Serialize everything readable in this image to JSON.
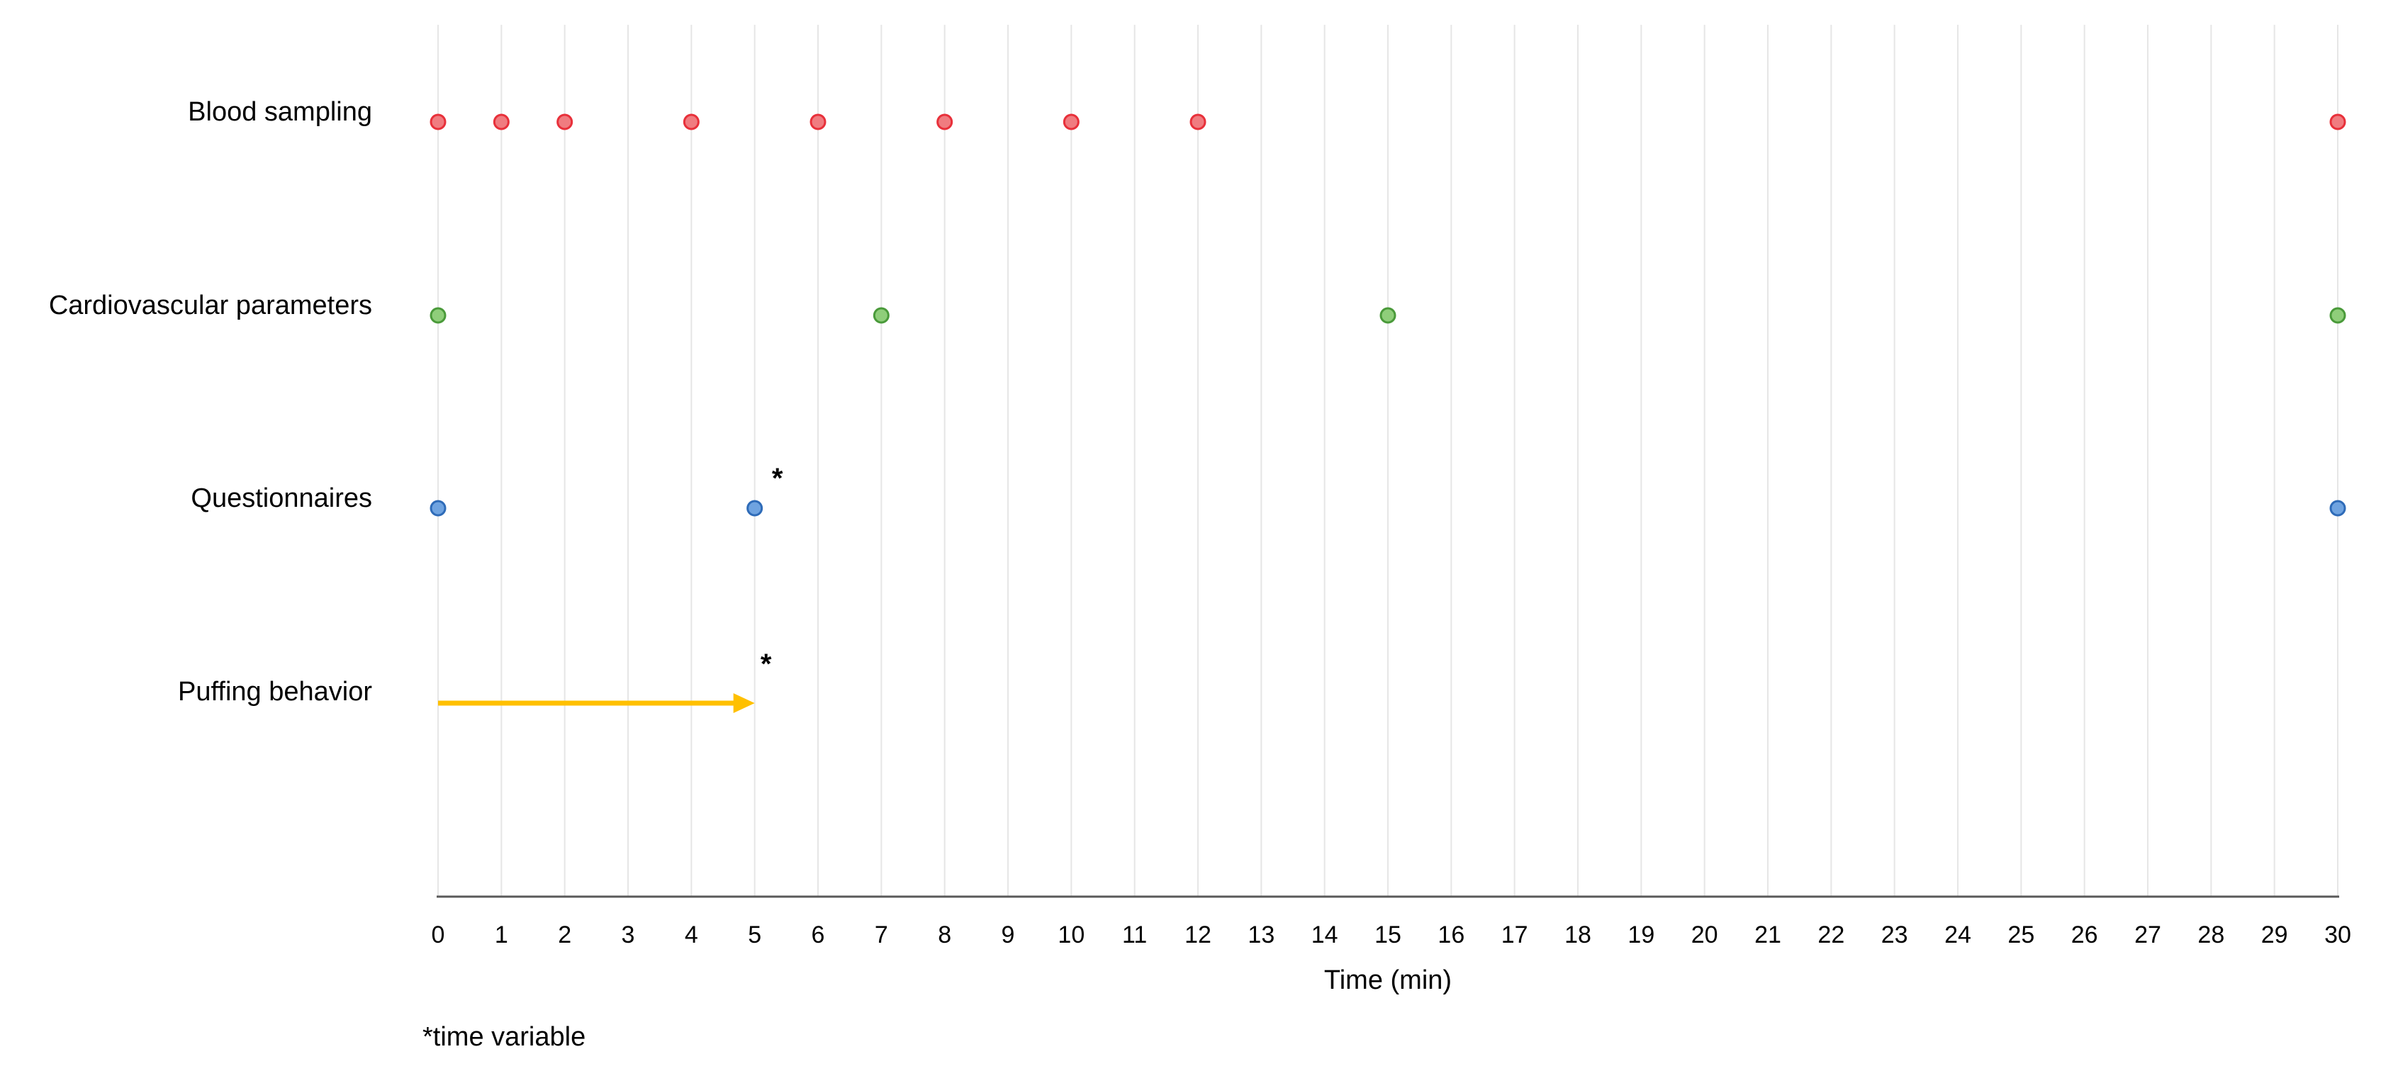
{
  "chart_data": {
    "type": "scatter",
    "title": "",
    "xlabel": "Time (min)",
    "ylabel": "",
    "xlim": [
      0,
      30
    ],
    "x_ticks": [
      0,
      1,
      2,
      3,
      4,
      5,
      6,
      7,
      8,
      9,
      10,
      11,
      12,
      13,
      14,
      15,
      16,
      17,
      18,
      19,
      20,
      21,
      22,
      23,
      24,
      25,
      26,
      27,
      28,
      29,
      30
    ],
    "grid": "vertical",
    "legend": "none",
    "categories": [
      "Blood sampling",
      "Cardiovascular parameters",
      "Questionnaires",
      "Puffing behavior"
    ],
    "series": [
      {
        "name": "Blood sampling",
        "marker": "point",
        "color": "#e8303a",
        "fill": "#f07c80",
        "x": [
          0,
          1,
          2,
          4,
          6,
          8,
          10,
          12,
          30
        ]
      },
      {
        "name": "Cardiovascular parameters",
        "marker": "point",
        "color": "#4a9a3a",
        "fill": "#8fce7a",
        "x": [
          0,
          7,
          15,
          30
        ]
      },
      {
        "name": "Questionnaires",
        "marker": "point",
        "color": "#2e6bb8",
        "fill": "#6fa3e0",
        "x": [
          0,
          5,
          30
        ]
      },
      {
        "name": "Puffing behavior",
        "marker": "arrow",
        "color": "#ffc000",
        "x_start": 0,
        "x_end": 5
      }
    ],
    "annotations": [
      {
        "text": "*",
        "row": "Questionnaires",
        "x": 5
      },
      {
        "text": "*",
        "row": "Puffing behavior",
        "x": 5
      }
    ],
    "footnote": "*time variable"
  }
}
